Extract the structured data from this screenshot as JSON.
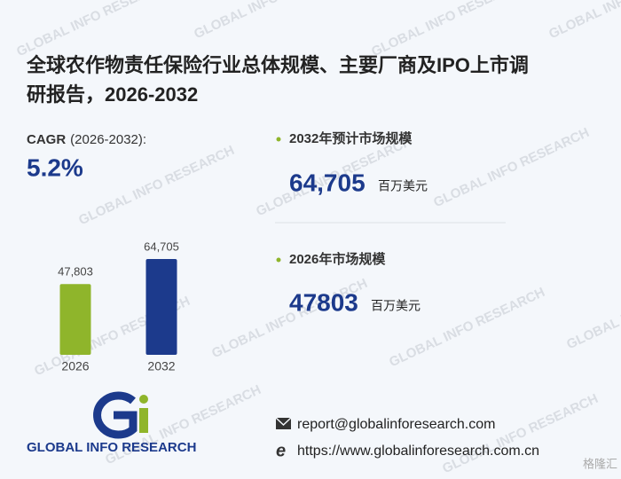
{
  "title_lines": [
    "全球农作物责任保险行业总体规模、主要厂商及IPO上市调",
    "研报告，2026-2032"
  ],
  "cagr": {
    "label": "CAGR",
    "period": "(2026-2032):",
    "value": "5.2%"
  },
  "stats": [
    {
      "label": "2032年预计市场规模",
      "value": "64,705",
      "unit": "百万美元"
    },
    {
      "label": "2026年市场规模",
      "value": "47803",
      "unit": "百万美元"
    }
  ],
  "chart_data": {
    "type": "bar",
    "categories": [
      "2026",
      "2032"
    ],
    "values": [
      47803,
      64705
    ],
    "value_labels": [
      "47,803",
      "64,705"
    ],
    "colors": [
      "#8fb52b",
      "#1c3a8c"
    ]
  },
  "logo": {
    "text": "GLOBAL INFO RESEARCH"
  },
  "contact": {
    "email": "report@globalinforesearch.com",
    "website": "https://www.globalinforesearch.com.cn"
  },
  "watermark": "GLOBAL INFO RESEARCH",
  "corner_badge": "格隆汇"
}
